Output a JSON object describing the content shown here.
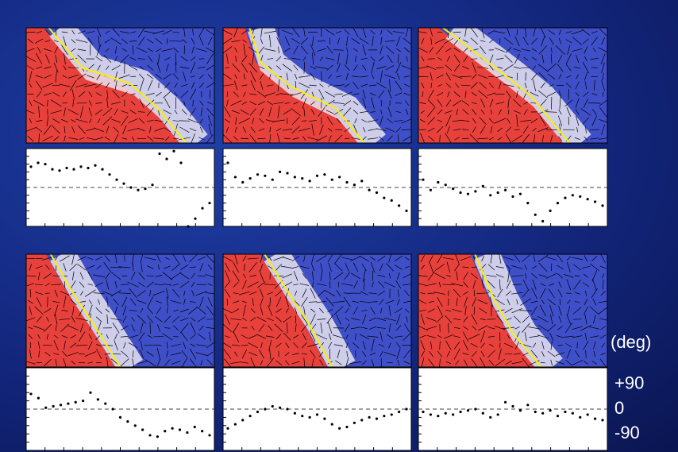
{
  "chart_data": [
    {
      "type": "scatter",
      "ylim": [
        -150,
        150
      ],
      "zero_line": true,
      "color": "#000000",
      "values": [
        80,
        95,
        90,
        70,
        65,
        75,
        70,
        80,
        75,
        85,
        70,
        50,
        30,
        15,
        0,
        -10,
        -5,
        10,
        130,
        110,
        140,
        95,
        -150,
        -120,
        -80,
        -60
      ]
    },
    {
      "type": "scatter",
      "ylim": [
        -150,
        150
      ],
      "zero_line": true,
      "color": "#000000",
      "values": [
        95,
        40,
        20,
        35,
        50,
        45,
        30,
        60,
        55,
        40,
        35,
        25,
        45,
        50,
        30,
        40,
        20,
        10,
        25,
        -10,
        -20,
        -40,
        -50,
        -70,
        -90
      ]
    },
    {
      "type": "scatter",
      "ylim": [
        -150,
        150
      ],
      "zero_line": true,
      "color": "#000000",
      "values": [
        30,
        -10,
        20,
        10,
        -5,
        -20,
        -25,
        -15,
        5,
        -30,
        -20,
        -10,
        -35,
        -25,
        -60,
        -105,
        -130,
        -90,
        -60,
        -40,
        -30,
        -35,
        -45,
        -55,
        -70
      ]
    },
    {
      "type": "scatter",
      "ylim": [
        -150,
        150
      ],
      "zero_line": true,
      "color": "#000000",
      "values": [
        55,
        40,
        5,
        10,
        15,
        20,
        25,
        30,
        60,
        35,
        20,
        0,
        -30,
        -45,
        -60,
        -75,
        -95,
        -100,
        -80,
        -70,
        -75,
        -85,
        -65,
        -80,
        -95
      ]
    },
    {
      "type": "scatter",
      "ylim": [
        -150,
        150
      ],
      "zero_line": true,
      "color": "#000000",
      "values": [
        -70,
        -55,
        -40,
        -25,
        -10,
        0,
        10,
        5,
        0,
        -15,
        -25,
        -30,
        -20,
        -35,
        -55,
        -70,
        -65,
        -50,
        -40,
        -30,
        -35,
        -25,
        -20,
        -10,
        0
      ]
    },
    {
      "type": "scatter",
      "ylim": [
        -150,
        150
      ],
      "zero_line": true,
      "color": "#000000",
      "ylabel": "(deg)",
      "yticks": [
        {
          "value": 90,
          "label": "+90"
        },
        0,
        {
          "value": -90,
          "label": "-90"
        }
      ],
      "values": [
        -10,
        -20,
        -25,
        -15,
        -20,
        -10,
        -5,
        0,
        -15,
        -30,
        -20,
        25,
        10,
        -5,
        15,
        -10,
        -15,
        -5,
        -25,
        -10,
        -15,
        -30,
        -20,
        -35,
        -40
      ]
    }
  ]
}
